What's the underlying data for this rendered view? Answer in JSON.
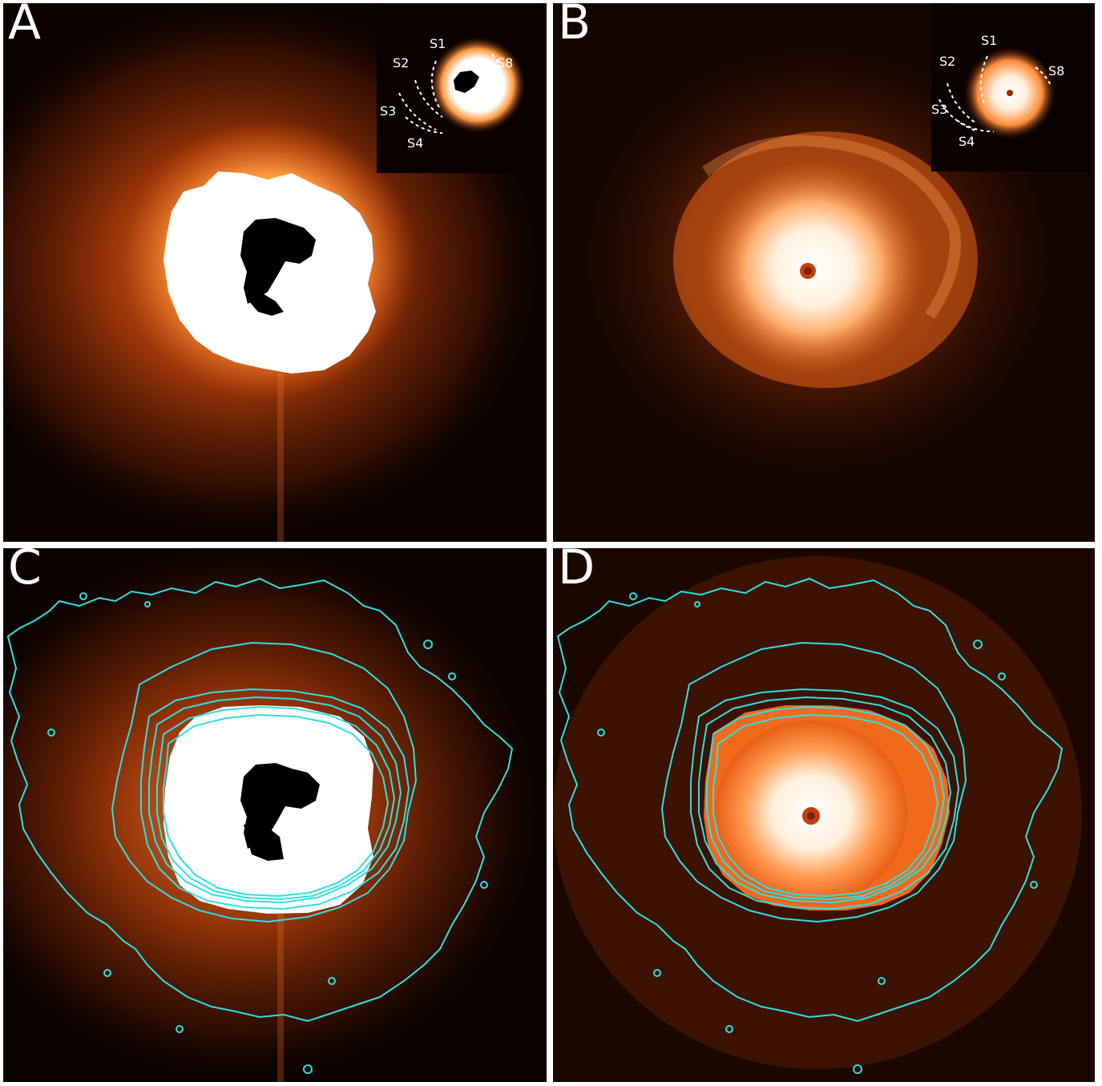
{
  "panels": [
    {
      "id": "A",
      "label": "A"
    },
    {
      "id": "B",
      "label": "B"
    },
    {
      "id": "C",
      "label": "C"
    },
    {
      "id": "D",
      "label": "D"
    }
  ],
  "insets": {
    "A": {
      "labels": [
        "S1",
        "S2",
        "S3",
        "S4",
        "S8"
      ]
    },
    "B": {
      "labels": [
        "S1",
        "S2",
        "S3",
        "S4",
        "S8"
      ]
    }
  },
  "colors": {
    "background": "#080200",
    "glow_orange": "#e05a10",
    "core_white": "#ffffff",
    "contour_cyan": "#2de0e0",
    "separator": "#ffffff"
  }
}
